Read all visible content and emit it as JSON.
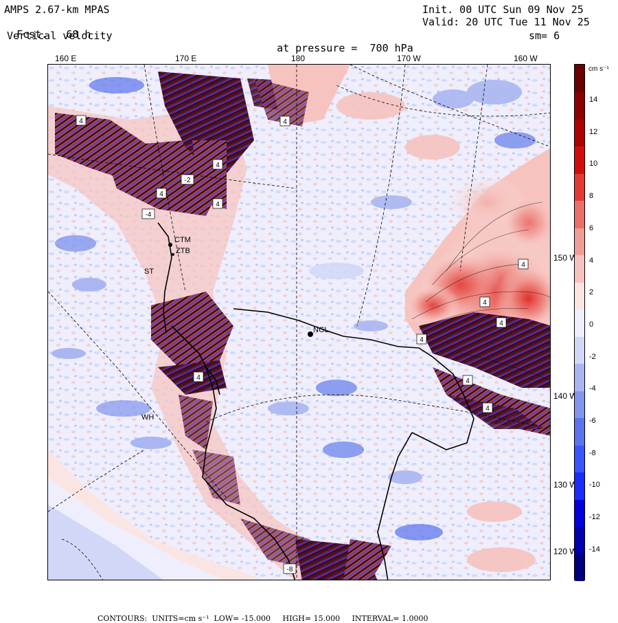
{
  "header": {
    "model": "AMPS 2.67-km MPAS",
    "fcst_label": "Fcst.",
    "fcst_value": "68 h",
    "field": "Vertical velocity",
    "init": "Init. 00 UTC Sun 09 Nov 25",
    "valid": "Valid: 20 UTC Tue 11 Nov 25",
    "pressure_label": "at pressure =",
    "pressure_value": "700 hPa",
    "smoothing": "sm= 6"
  },
  "longitude_labels": [
    "160 E",
    "170 E",
    "180",
    "170 W",
    "160 W"
  ],
  "latitude_labels": [
    "150 W",
    "140 W",
    "130 W",
    "120 W"
  ],
  "stations": [
    {
      "name": "NGL"
    },
    {
      "name": "CTM"
    },
    {
      "name": "ZTB"
    },
    {
      "name": "WH"
    },
    {
      "name": "ST"
    }
  ],
  "contour_labels": [
    "4",
    "4",
    "4",
    "4",
    "4",
    "-4",
    "4",
    "-2",
    "4",
    "4",
    "4",
    "4",
    "4",
    "4",
    "-8"
  ],
  "colorbar": {
    "unit": "cm s⁻¹",
    "ticks": [
      "14",
      "12",
      "10",
      "8",
      "6",
      "4",
      "2",
      "0",
      "-2",
      "-4",
      "-6",
      "-8",
      "-10",
      "-12",
      "-14"
    ],
    "colors": [
      "#00007f",
      "#0000b0",
      "#0000e0",
      "#1a2cff",
      "#3a55ff",
      "#5b74ee",
      "#8296ee",
      "#aab6f2",
      "#d1d8f7",
      "#eeeefc",
      "#fbe5e3",
      "#f6c3bf",
      "#f09c97",
      "#ea6f69",
      "#e33a34",
      "#d40d0b",
      "#b00000",
      "#8c0000",
      "#6a0000"
    ]
  },
  "footer": {
    "contours_label": "CONTOURS:",
    "units_text": "UNITS=cm s⁻¹",
    "low_text": "LOW= -15.000",
    "high_text": "HIGH= 15.000",
    "interval_text": "INTERVAL= 1.0000"
  }
}
